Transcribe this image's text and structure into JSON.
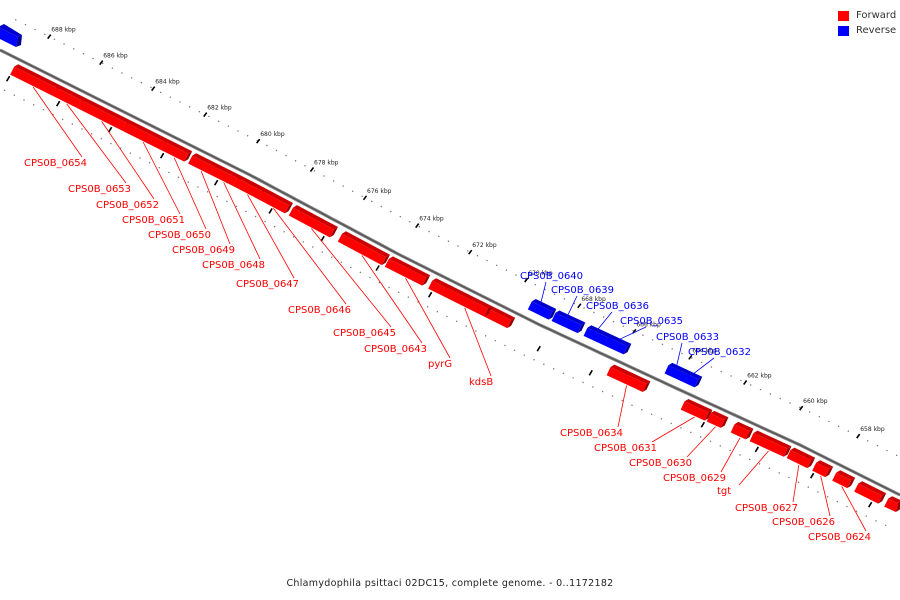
{
  "caption": "Chlamydophila psittaci 02DC15, complete genome. - 0..1172182",
  "legend": [
    {
      "label": "Forward",
      "color": "#ff0000"
    },
    {
      "label": "Reverse",
      "color": "#0000ff"
    }
  ],
  "colors": {
    "forward": "#ff0000",
    "reverse": "#0000ff",
    "backbone": "#555555"
  },
  "ticks": [
    "688 kbp",
    "686 kbp",
    "684 kbp",
    "682 kbp",
    "680 kbp",
    "678 kbp",
    "676 kbp",
    "674 kbp",
    "672 kbp",
    "670 kbp",
    "668 kbp",
    "666 kbp",
    "664 kbp",
    "662 kbp",
    "660 kbp",
    "658 kbp"
  ],
  "genes": [
    {
      "label": "CPS0B_0654",
      "strand": "forward"
    },
    {
      "label": "CPS0B_0653",
      "strand": "forward"
    },
    {
      "label": "CPS0B_0652",
      "strand": "forward"
    },
    {
      "label": "CPS0B_0651",
      "strand": "forward"
    },
    {
      "label": "CPS0B_0650",
      "strand": "forward"
    },
    {
      "label": "CPS0B_0649",
      "strand": "forward"
    },
    {
      "label": "CPS0B_0648",
      "strand": "forward"
    },
    {
      "label": "CPS0B_0647",
      "strand": "forward"
    },
    {
      "label": "CPS0B_0646",
      "strand": "forward"
    },
    {
      "label": "CPS0B_0645",
      "strand": "forward"
    },
    {
      "label": "CPS0B_0643",
      "strand": "forward"
    },
    {
      "label": "pyrG",
      "strand": "forward"
    },
    {
      "label": "kdsB",
      "strand": "forward"
    },
    {
      "label": "CPS0B_0640",
      "strand": "reverse"
    },
    {
      "label": "CPS0B_0639",
      "strand": "reverse"
    },
    {
      "label": "CPS0B_0636",
      "strand": "reverse"
    },
    {
      "label": "CPS0B_0635",
      "strand": "reverse"
    },
    {
      "label": "CPS0B_0633",
      "strand": "reverse"
    },
    {
      "label": "CPS0B_0632",
      "strand": "reverse"
    },
    {
      "label": "CPS0B_0634",
      "strand": "forward"
    },
    {
      "label": "CPS0B_0631",
      "strand": "forward"
    },
    {
      "label": "CPS0B_0630",
      "strand": "forward"
    },
    {
      "label": "CPS0B_0629",
      "strand": "forward"
    },
    {
      "label": "tgt",
      "strand": "forward"
    },
    {
      "label": "CPS0B_0627",
      "strand": "forward"
    },
    {
      "label": "CPS0B_0626",
      "strand": "forward"
    },
    {
      "label": "CPS0B_0624",
      "strand": "forward"
    }
  ]
}
